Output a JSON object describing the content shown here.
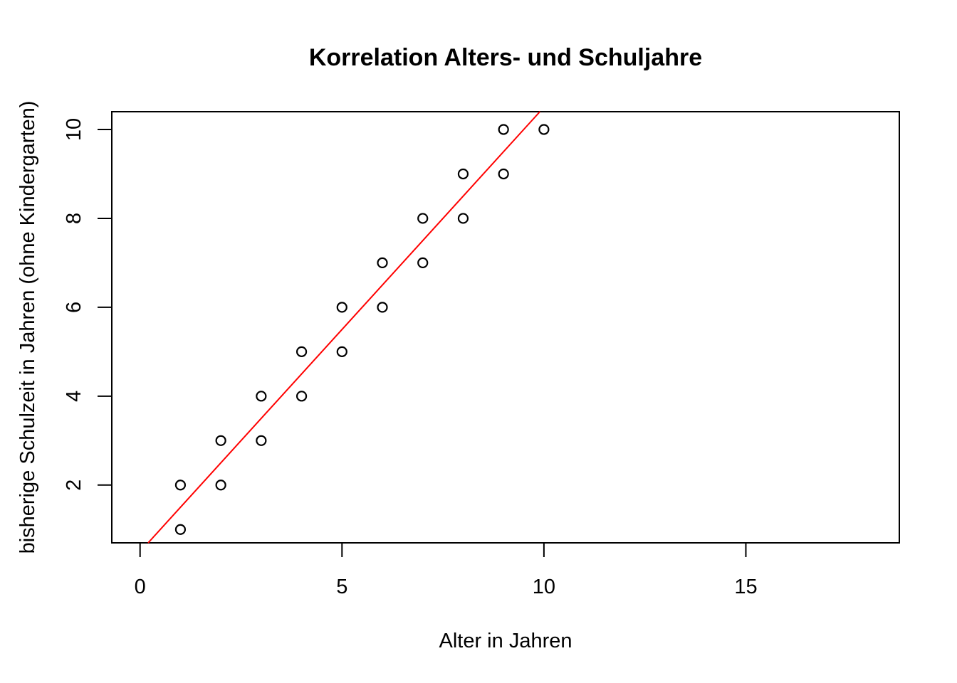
{
  "chart_data": {
    "type": "scatter",
    "title": "Korrelation Alters- und Schuljahre",
    "xlabel": "Alter in Jahren",
    "ylabel": "bisherige Schulzeit in Jahren (ohne Kindergarten)",
    "xlim": [
      -0.7,
      18.8
    ],
    "ylim": [
      0.7,
      10.4
    ],
    "xticks": [
      "0",
      "5",
      "10",
      "15"
    ],
    "yticks": [
      "2",
      "4",
      "6",
      "8",
      "10"
    ],
    "grid": false,
    "points": [
      {
        "x": 1,
        "y": 1
      },
      {
        "x": 1,
        "y": 2
      },
      {
        "x": 2,
        "y": 2
      },
      {
        "x": 2,
        "y": 3
      },
      {
        "x": 3,
        "y": 3
      },
      {
        "x": 3,
        "y": 4
      },
      {
        "x": 4,
        "y": 4
      },
      {
        "x": 4,
        "y": 5
      },
      {
        "x": 5,
        "y": 5
      },
      {
        "x": 5,
        "y": 6
      },
      {
        "x": 6,
        "y": 6
      },
      {
        "x": 6,
        "y": 7
      },
      {
        "x": 7,
        "y": 7
      },
      {
        "x": 7,
        "y": 8
      },
      {
        "x": 8,
        "y": 8
      },
      {
        "x": 8,
        "y": 9
      },
      {
        "x": 9,
        "y": 9
      },
      {
        "x": 9,
        "y": 10
      },
      {
        "x": 10,
        "y": 10
      }
    ],
    "regression_line": {
      "intercept": 0.5,
      "slope": 1.0,
      "color": "#ff0000"
    },
    "point_color": "#000000"
  }
}
